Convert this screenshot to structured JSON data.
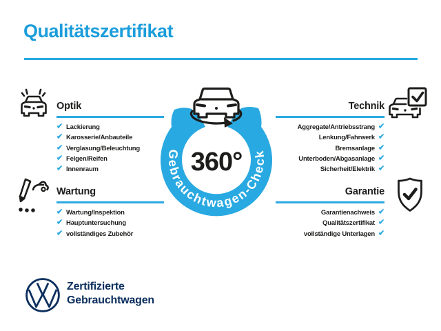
{
  "header": {
    "title": "Qualitätszertifikat"
  },
  "badge": {
    "degrees": "360°",
    "ring_text": "Gebrauchtwagen-Check"
  },
  "sections": {
    "optik": {
      "title": "Optik",
      "items": [
        "Lackierung",
        "Karosserie/Anbauteile",
        "Verglasung/Beleuchtung",
        "Felgen/Reifen",
        "Innenraum"
      ]
    },
    "technik": {
      "title": "Technik",
      "items": [
        "Aggregate/Antriebsstrang",
        "Lenkung/Fahrwerk",
        "Bremsanlage",
        "Unterboden/Abgasanlage",
        "Sicherheit/Elektrik"
      ]
    },
    "wartung": {
      "title": "Wartung",
      "items": [
        "Wartung/Inspektion",
        "Hauptuntersuchung",
        "vollständiges Zubehör"
      ]
    },
    "garantie": {
      "title": "Garantie",
      "items": [
        "Garantienachweis",
        "Qualitätszertifikat",
        "vollständige Unterlagen"
      ]
    }
  },
  "footer": {
    "line1": "Zertifizierte",
    "line2": "Gebrauchtwagen"
  },
  "icons": {
    "check_glyph": "✔",
    "optik": "car-front-shine-icon",
    "wartung": "inspection-pen-car-icon",
    "technik": "car-checkbox-icon",
    "garantie": "shield-check-icon",
    "badge_car": "car-rotation-icon",
    "logo": "vw-logo"
  },
  "colors": {
    "accent_blue": "#29a9e1",
    "title_blue": "#1a9ddb",
    "navy": "#0c2f5e",
    "ink": "#1d1d1b"
  }
}
